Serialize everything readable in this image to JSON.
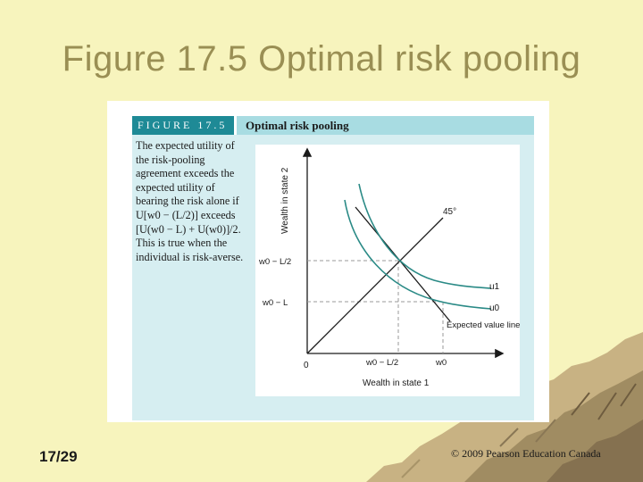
{
  "slide": {
    "title": "Figure 17.5 Optimal risk pooling",
    "slide_number": "17/29",
    "copyright": "© 2009 Pearson Education Canada"
  },
  "figure": {
    "label": "FIGURE 17.5",
    "heading": "Optimal risk pooling",
    "caption": "The expected utility of the risk-pooling agreement exceeds the expected utility of bearing the risk alone if U[w0 − (L/2)] exceeds [U(w0 − L) + U(w0)]/2. This is true when the individual is risk-averse."
  },
  "chart_data": {
    "type": "diagram",
    "xlabel": "Wealth in state 1",
    "ylabel": "Wealth in state 2",
    "x_ticks": [
      "0",
      "w0 − L/2",
      "w0"
    ],
    "y_ticks": [
      "w0 − L/2",
      "w0 − L"
    ],
    "curve_labels": [
      "u1",
      "u0"
    ],
    "line_labels": [
      "45°",
      "Expected value line"
    ],
    "colors": {
      "indifference_curves": "#2a8a86",
      "axes": "#1a1a1a",
      "guides": "#999999"
    }
  },
  "colors": {
    "background": "#f7f4bd",
    "title": "#9a8f54",
    "header_dark": "#1e8a96",
    "header_light": "#a8dce2",
    "caption_box": "#d6eef1"
  }
}
